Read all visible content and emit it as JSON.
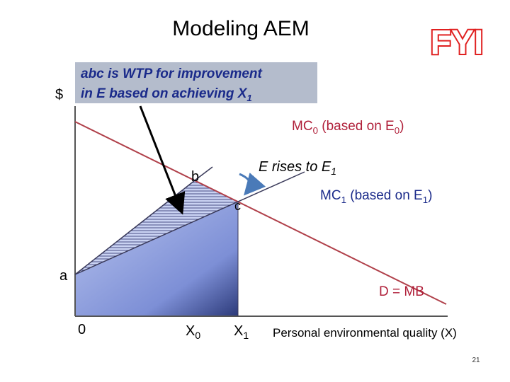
{
  "title": "Modeling AEM",
  "badge": "FYI",
  "callout": {
    "line1": "abc is WTP for improvement",
    "line2": [
      "in E based on achieving X",
      "1"
    ]
  },
  "y_axis_label": "$",
  "mc0_label": [
    "MC",
    "0",
    " (based on E",
    "0",
    ")"
  ],
  "mc1_label": [
    "MC",
    "1",
    " (based on E",
    "1",
    ")"
  ],
  "shift_label": [
    "E rises to E",
    "1"
  ],
  "points": {
    "a": "a",
    "b": "b",
    "c": "c"
  },
  "demand_label": "D = MB",
  "x_labels": {
    "origin": "0",
    "x0": [
      "X",
      "0"
    ],
    "x1": [
      "X",
      "1"
    ]
  },
  "x_axis_label": "Personal environmental quality (X)",
  "page_number": "21"
}
